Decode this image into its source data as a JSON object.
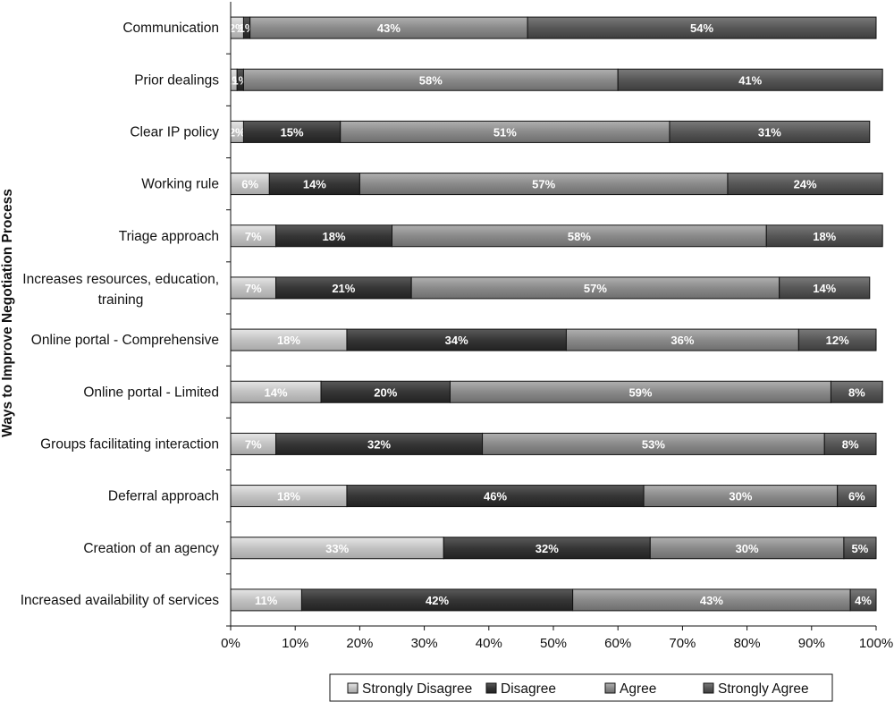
{
  "chart_data": {
    "type": "bar",
    "orientation": "horizontal",
    "stacked": "percent",
    "ylabel": "Ways to Improve Negotiation Process",
    "xlabel": "",
    "xlim": [
      0,
      100
    ],
    "x_ticks": [
      "0%",
      "10%",
      "20%",
      "30%",
      "40%",
      "50%",
      "60%",
      "70%",
      "80%",
      "90%",
      "100%"
    ],
    "categories": [
      "Communication",
      "Prior dealings",
      "Clear IP policy",
      "Working rule",
      "Triage approach",
      "Increases resources, education, training",
      "Online portal - Comprehensive",
      "Online portal - Limited",
      "Groups facilitating interaction",
      "Deferral approach",
      "Creation of an agency",
      "Increased availability of services"
    ],
    "series": [
      {
        "name": "Strongly Disagree",
        "color": "#c8c8c8",
        "values": [
          2,
          1,
          2,
          6,
          7,
          7,
          18,
          14,
          7,
          18,
          33,
          11
        ],
        "labels": [
          "2%",
          "1%",
          "2%",
          "6%",
          "7%",
          "7%",
          "18%",
          "14%",
          "7%",
          "18%",
          "33%",
          "11%"
        ]
      },
      {
        "name": "Disagree",
        "color": "#3a3a3a",
        "values": [
          1,
          1,
          15,
          14,
          18,
          21,
          34,
          20,
          32,
          46,
          32,
          42
        ],
        "labels": [
          "1%",
          "1%",
          "15%",
          "14%",
          "18%",
          "21%",
          "34%",
          "20%",
          "32%",
          "46%",
          "32%",
          "42%"
        ]
      },
      {
        "name": "Agree",
        "color": "#8c8c8c",
        "values": [
          43,
          58,
          51,
          57,
          58,
          57,
          36,
          59,
          53,
          30,
          30,
          43
        ],
        "labels": [
          "43%",
          "58%",
          "51%",
          "57%",
          "58%",
          "57%",
          "36%",
          "59%",
          "53%",
          "30%",
          "30%",
          "43%"
        ]
      },
      {
        "name": "Strongly Agree",
        "color": "#5c5c5c",
        "values": [
          54,
          41,
          31,
          24,
          18,
          14,
          12,
          8,
          8,
          6,
          5,
          4
        ],
        "labels": [
          "54%",
          "41%",
          "31%",
          "24%",
          "18%",
          "14%",
          "12%",
          "8%",
          "8%",
          "6%",
          "5%",
          "4%"
        ]
      }
    ],
    "grid": false,
    "legend_position": "bottom"
  }
}
